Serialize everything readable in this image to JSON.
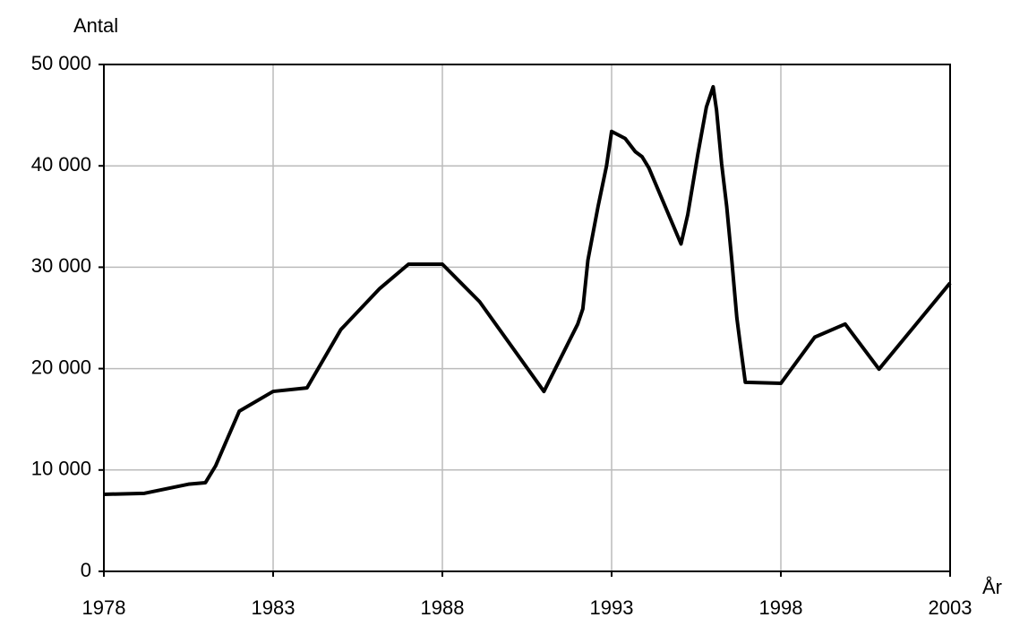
{
  "chart_data": {
    "type": "line",
    "y_axis_label": "Antal",
    "x_axis_label": "År",
    "series": [
      {
        "color": "#000000",
        "x": [
          1978,
          1979.2,
          1980.5,
          1981,
          1981.3,
          1982,
          1983,
          1984,
          1985,
          1986.15,
          1987,
          1988,
          1989.1,
          1991,
          1992,
          1992.15,
          1992.3,
          1992.6,
          1992.85,
          1993,
          1993.4,
          1993.7,
          1993.9,
          1994.1,
          1995.05,
          1995.25,
          1995.55,
          1995.8,
          1996,
          1996.1,
          1996.25,
          1996.4,
          1996.55,
          1996.7,
          1996.8,
          1996.95,
          1998,
          1999,
          1999.9,
          2000.9,
          2003
        ],
        "values": [
          7600,
          7700,
          8600,
          8750,
          10400,
          15800,
          17750,
          18100,
          23850,
          27900,
          30300,
          30300,
          26600,
          17750,
          24400,
          25900,
          30700,
          36000,
          40000,
          43400,
          42700,
          41400,
          40900,
          39800,
          32300,
          35200,
          41200,
          45800,
          47800,
          45500,
          40200,
          36000,
          30700,
          25000,
          22400,
          18650,
          18550,
          23100,
          24400,
          19950,
          28450
        ]
      }
    ],
    "xlim": [
      1978,
      2003
    ],
    "xticks": [
      1978,
      1983,
      1988,
      1993,
      1998,
      2003
    ],
    "ylim": [
      0,
      50000
    ],
    "yticks": [
      {
        "value": 0,
        "label": "0"
      },
      {
        "value": 10000,
        "label": "10 000"
      },
      {
        "value": 20000,
        "label": "20 000"
      },
      {
        "value": 30000,
        "label": "30 000"
      },
      {
        "value": 40000,
        "label": "40 000"
      },
      {
        "value": 50000,
        "label": "50 000"
      }
    ],
    "grid": true
  }
}
